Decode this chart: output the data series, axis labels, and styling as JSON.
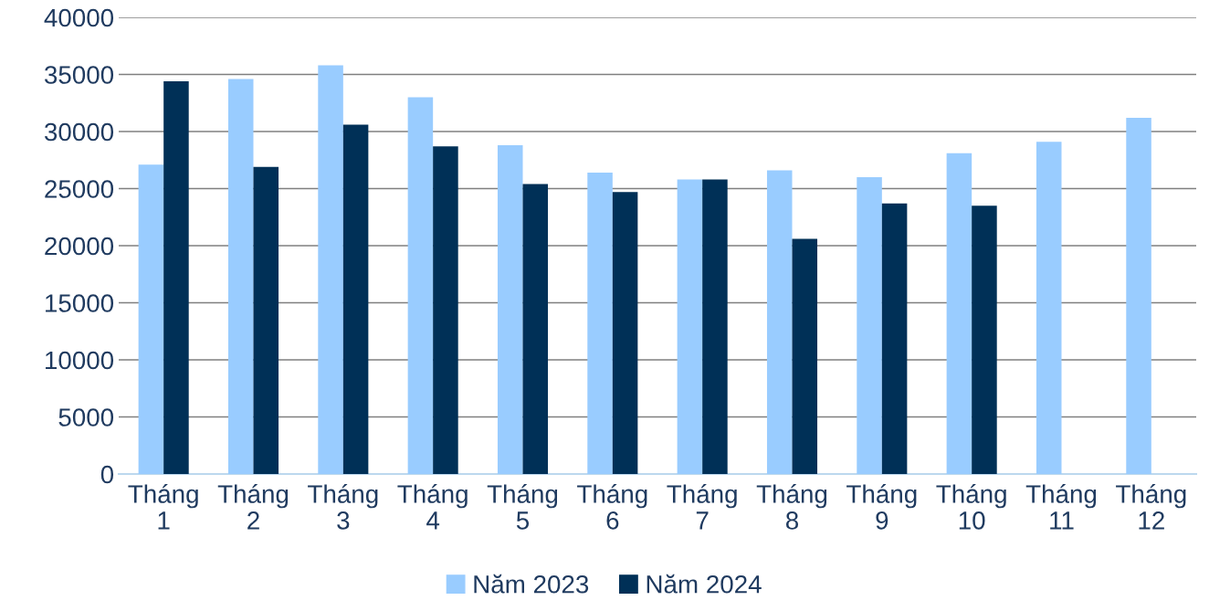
{
  "chart_data": {
    "type": "bar",
    "categories": [
      "Tháng 1",
      "Tháng 2",
      "Tháng 3",
      "Tháng 4",
      "Tháng 5",
      "Tháng 6",
      "Tháng 7",
      "Tháng 8",
      "Tháng 9",
      "Tháng 10",
      "Tháng 11",
      "Tháng 12"
    ],
    "series": [
      {
        "name": "Năm 2023",
        "color": "#99ccff",
        "values": [
          27100,
          34600,
          35800,
          33000,
          28800,
          26400,
          25800,
          26600,
          26000,
          28100,
          29100,
          31200
        ]
      },
      {
        "name": "Năm 2024",
        "color": "#003057",
        "values": [
          34400,
          26900,
          30600,
          28700,
          25400,
          24700,
          25800,
          20600,
          23700,
          23500,
          null,
          null
        ]
      }
    ],
    "ylim": [
      0,
      40000
    ],
    "yticks": [
      0,
      5000,
      10000,
      15000,
      20000,
      25000,
      30000,
      35000,
      40000
    ],
    "grid": "y",
    "legend": "bottom"
  }
}
